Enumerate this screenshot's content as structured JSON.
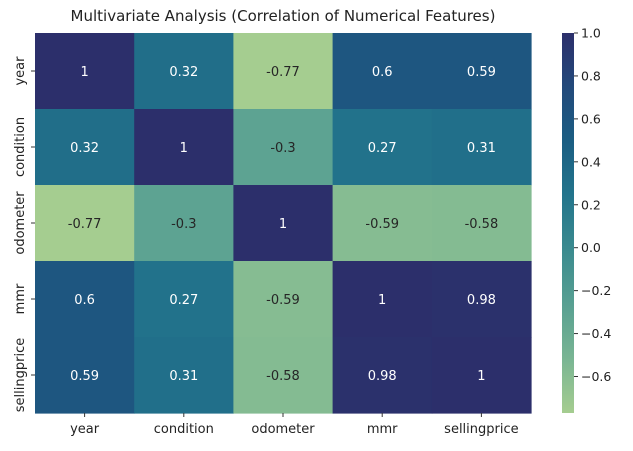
{
  "chart_data": {
    "type": "heatmap",
    "title": "Multivariate Analysis (Correlation of Numerical Features)",
    "xlabel": "",
    "ylabel": "",
    "x_categories": [
      "year",
      "condition",
      "odometer",
      "mmr",
      "sellingprice"
    ],
    "y_categories": [
      "year",
      "condition",
      "odometer",
      "mmr",
      "sellingprice"
    ],
    "values": [
      [
        1,
        0.32,
        -0.77,
        0.6,
        0.59
      ],
      [
        0.32,
        1,
        -0.3,
        0.27,
        0.31
      ],
      [
        -0.77,
        -0.3,
        1,
        -0.59,
        -0.58
      ],
      [
        0.6,
        0.27,
        -0.59,
        1,
        0.98
      ],
      [
        0.59,
        0.31,
        -0.58,
        0.98,
        1
      ]
    ],
    "annotations": [
      [
        "1",
        "0.32",
        "-0.77",
        "0.6",
        "0.59"
      ],
      [
        "0.32",
        "1",
        "-0.3",
        "0.27",
        "0.31"
      ],
      [
        "-0.77",
        "-0.3",
        "1",
        "-0.59",
        "-0.58"
      ],
      [
        "0.6",
        "0.27",
        "-0.59",
        "1",
        "0.98"
      ],
      [
        "0.59",
        "0.31",
        "-0.58",
        "0.98",
        "1"
      ]
    ],
    "colorbar": {
      "range": [
        -0.77,
        1.0
      ],
      "ticks": [
        1.0,
        0.8,
        0.6,
        0.4,
        0.2,
        0.0,
        -0.2,
        -0.4,
        -0.6
      ],
      "tick_labels": [
        "1.0",
        "0.8",
        "0.6",
        "0.4",
        "0.2",
        "0.0",
        "−0.2",
        "−0.4",
        "−0.6"
      ]
    },
    "colormap": "crest",
    "colormap_stops": [
      "#a5cd90",
      "#79b593",
      "#58a092",
      "#3b8b8f",
      "#23758c",
      "#1b5e83",
      "#234a7b",
      "#2c2f6b"
    ],
    "grid": false,
    "legend": "colorbar-right"
  }
}
